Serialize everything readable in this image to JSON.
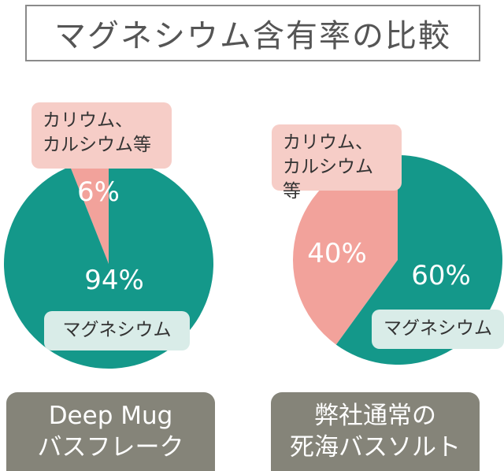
{
  "title": "マグネシウム含有率の比較",
  "colors": {
    "magnesium": "#14988a",
    "other": "#f2a29b",
    "product_box": "#858479"
  },
  "chart_data": [
    {
      "type": "pie",
      "product_lines": [
        "Deep Mug",
        "バスフレーク"
      ],
      "slices": [
        {
          "label": "カリウム、カルシウム等",
          "label_lines": [
            "カリウム、",
            "カルシウム等"
          ],
          "value": 6,
          "value_label": "6%"
        },
        {
          "label": "マグネシウム",
          "label_lines": [
            "マグネシウム"
          ],
          "value": 94,
          "value_label": "94%"
        }
      ]
    },
    {
      "type": "pie",
      "product_lines": [
        "弊社通常の",
        "死海バスソルト"
      ],
      "slices": [
        {
          "label": "カリウム、カルシウム等",
          "label_lines": [
            "カリウム、",
            "カルシウム等"
          ],
          "value": 40,
          "value_label": "40%"
        },
        {
          "label": "マグネシウム",
          "label_lines": [
            "マグネシウム"
          ],
          "value": 60,
          "value_label": "60%"
        }
      ]
    }
  ]
}
